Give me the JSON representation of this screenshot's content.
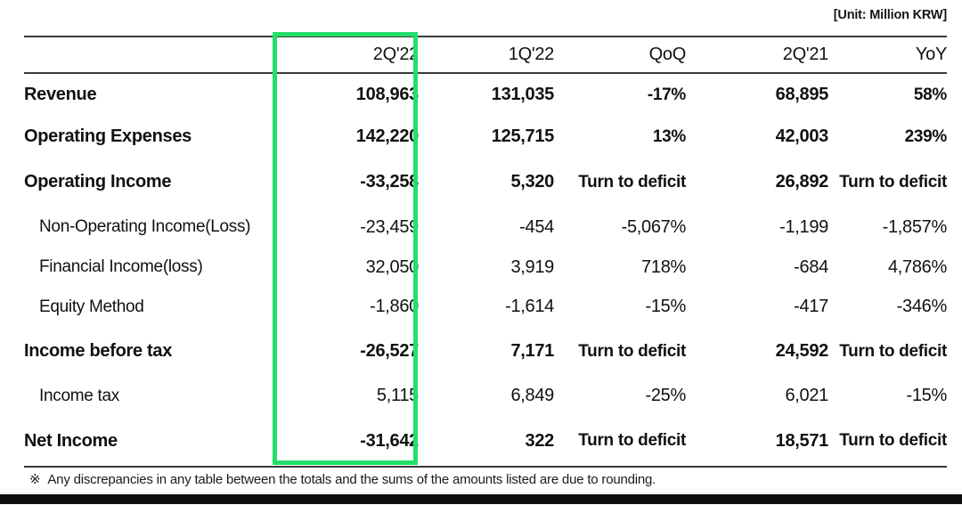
{
  "unit_label": "[Unit: Million KRW]",
  "colors": {
    "highlight_green": "#22df6a",
    "rule_gray": "#3a3a3a",
    "text": "#111111"
  },
  "table": {
    "headers": [
      "2Q'22",
      "1Q'22",
      "QoQ",
      "2Q'21",
      "YoY"
    ],
    "highlighted_column": "2Q'22",
    "rows": [
      {
        "label": "Revenue",
        "values": [
          "108,963",
          "131,035",
          "-17%",
          "68,895",
          "58%"
        ]
      },
      {
        "label": "Operating Expenses",
        "values": [
          "142,220",
          "125,715",
          "13%",
          "42,003",
          "239%"
        ]
      },
      {
        "label": "Operating Income",
        "values": [
          "-33,258",
          "5,320",
          "Turn to deficit",
          "26,892",
          "Turn to deficit"
        ]
      },
      {
        "label": "Non-Operating Income(Loss)",
        "values": [
          "-23,459",
          "-454",
          "-5,067%",
          "-1,199",
          "-1,857%"
        ]
      },
      {
        "label": "Financial Income(loss)",
        "values": [
          "32,050",
          "3,919",
          "718%",
          "-684",
          "4,786%"
        ]
      },
      {
        "label": "Equity Method",
        "values": [
          "-1,860",
          "-1,614",
          "-15%",
          "-417",
          "-346%"
        ]
      },
      {
        "label": "Income before tax",
        "values": [
          "-26,527",
          "7,171",
          "Turn to deficit",
          "24,592",
          "Turn to deficit"
        ]
      },
      {
        "label": "Income tax",
        "values": [
          "5,115",
          "6,849",
          "-25%",
          "6,021",
          "-15%"
        ]
      },
      {
        "label": "Net Income",
        "values": [
          "-31,642",
          "322",
          "Turn to deficit",
          "18,571",
          "Turn to deficit"
        ]
      }
    ]
  },
  "footnote": {
    "marker": "※",
    "text": "Any discrepancies in any table between the totals and the sums of the amounts listed are due to rounding."
  }
}
